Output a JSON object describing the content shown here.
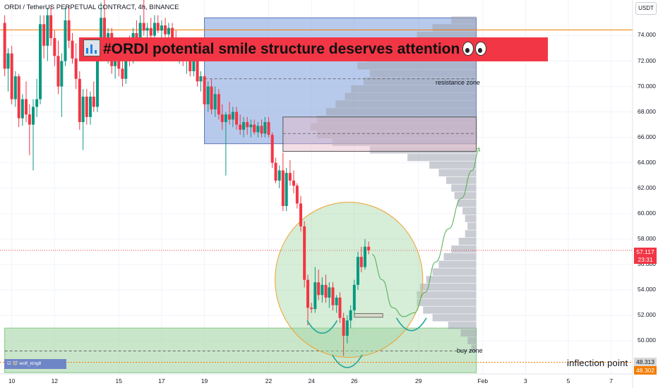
{
  "header": {
    "symbol": "ORDI / TetherUS PERPETUAL CONTRACT, 4h, BINANCE",
    "currency_button": "USDT"
  },
  "title_banner": {
    "text": "#ORDI potential smile structure deserves attention",
    "lead_icon": "bar-chart-icon",
    "trail_icon": "eyes-icon"
  },
  "annotations": {
    "resistance": "resistance zone",
    "buy": "buy zone",
    "inflection": "inflection point"
  },
  "price_tags": {
    "last_price": "57.117",
    "countdown": "23:31",
    "inflection_a": "48.313",
    "inflection_b": "48.302",
    "last_color": "#f23645",
    "inflection_a_color": "#d9d9d9",
    "inflection_b_color": "#f57c00"
  },
  "watermark": "wolf_king8",
  "colors": {
    "up": "#089981",
    "down": "#f23645",
    "resistance_box": "#7e9edc",
    "buy_box": "#a5d6a7",
    "profile": "#9ea3ae",
    "circle": "#f0a030",
    "projection": "#4caf50"
  },
  "chart_data": {
    "type": "candlestick",
    "ylim": [
      47.4,
      76.8
    ],
    "yticks": [
      74,
      72,
      70,
      68,
      66,
      64,
      62,
      60,
      58,
      56,
      54,
      52,
      50
    ],
    "ytick_labels": [
      "74.000",
      "72.000",
      "70.000",
      "68.000",
      "66.000",
      "64.000",
      "62.000",
      "60.000",
      "58.000",
      "56.000",
      "54.000",
      "52.000",
      "50.000"
    ],
    "xticks": [
      {
        "label": "10",
        "day": 10
      },
      {
        "label": "12",
        "day": 12
      },
      {
        "label": "15",
        "day": 15
      },
      {
        "label": "17",
        "day": 17
      },
      {
        "label": "19",
        "day": 19
      },
      {
        "label": "22",
        "day": 22
      },
      {
        "label": "24",
        "day": 24
      },
      {
        "label": "26",
        "day": 26
      },
      {
        "label": "29",
        "day": 29
      },
      {
        "label": "Feb",
        "day": 32
      },
      {
        "label": "3",
        "day": 34
      },
      {
        "label": "5",
        "day": 36
      },
      {
        "label": "7",
        "day": 38
      }
    ],
    "candles": [
      {
        "day": 9.67,
        "o": 75.0,
        "h": 75.6,
        "l": 70.8,
        "c": 71.4
      },
      {
        "day": 9.83,
        "o": 71.4,
        "h": 73.0,
        "l": 69.6,
        "c": 72.6
      },
      {
        "day": 10.0,
        "o": 72.6,
        "h": 73.2,
        "l": 68.6,
        "c": 69.0
      },
      {
        "day": 10.17,
        "o": 69.0,
        "h": 71.2,
        "l": 68.4,
        "c": 70.8
      },
      {
        "day": 10.33,
        "o": 70.8,
        "h": 71.0,
        "l": 66.8,
        "c": 67.5
      },
      {
        "day": 10.5,
        "o": 67.5,
        "h": 69.4,
        "l": 66.9,
        "c": 69.0
      },
      {
        "day": 10.67,
        "o": 69.0,
        "h": 70.4,
        "l": 67.2,
        "c": 67.8
      },
      {
        "day": 10.83,
        "o": 67.8,
        "h": 68.6,
        "l": 64.6,
        "c": 67.0
      },
      {
        "day": 11.0,
        "o": 67.0,
        "h": 69.0,
        "l": 63.4,
        "c": 68.4
      },
      {
        "day": 11.17,
        "o": 68.4,
        "h": 70.6,
        "l": 67.6,
        "c": 69.0
      },
      {
        "day": 11.33,
        "o": 69.0,
        "h": 75.6,
        "l": 68.6,
        "c": 74.9
      },
      {
        "day": 11.5,
        "o": 74.9,
        "h": 75.6,
        "l": 72.2,
        "c": 73.2
      },
      {
        "day": 11.67,
        "o": 73.2,
        "h": 76.2,
        "l": 72.0,
        "c": 75.6
      },
      {
        "day": 11.83,
        "o": 75.6,
        "h": 76.4,
        "l": 73.2,
        "c": 73.8
      },
      {
        "day": 12.0,
        "o": 73.8,
        "h": 74.4,
        "l": 71.6,
        "c": 72.4
      },
      {
        "day": 12.17,
        "o": 72.4,
        "h": 73.6,
        "l": 69.4,
        "c": 70.0
      },
      {
        "day": 12.33,
        "o": 70.0,
        "h": 72.6,
        "l": 67.6,
        "c": 72.0
      },
      {
        "day": 12.5,
        "o": 72.0,
        "h": 76.2,
        "l": 71.6,
        "c": 75.2
      },
      {
        "day": 12.67,
        "o": 75.2,
        "h": 76.4,
        "l": 73.0,
        "c": 73.6
      },
      {
        "day": 12.83,
        "o": 73.6,
        "h": 74.2,
        "l": 71.8,
        "c": 72.2
      },
      {
        "day": 13.0,
        "o": 72.2,
        "h": 73.4,
        "l": 69.8,
        "c": 70.6
      },
      {
        "day": 13.17,
        "o": 70.6,
        "h": 71.2,
        "l": 66.6,
        "c": 67.2
      },
      {
        "day": 13.33,
        "o": 67.2,
        "h": 69.8,
        "l": 65.0,
        "c": 69.2
      },
      {
        "day": 13.5,
        "o": 69.2,
        "h": 69.8,
        "l": 67.0,
        "c": 67.6
      },
      {
        "day": 13.67,
        "o": 67.6,
        "h": 69.6,
        "l": 67.0,
        "c": 69.2
      },
      {
        "day": 13.83,
        "o": 69.2,
        "h": 70.4,
        "l": 68.0,
        "c": 68.4
      },
      {
        "day": 14.0,
        "o": 68.4,
        "h": 73.8,
        "l": 68.0,
        "c": 72.6
      },
      {
        "day": 14.17,
        "o": 72.6,
        "h": 76.6,
        "l": 72.0,
        "c": 75.4
      },
      {
        "day": 14.33,
        "o": 75.4,
        "h": 76.8,
        "l": 72.6,
        "c": 73.2
      },
      {
        "day": 14.5,
        "o": 73.2,
        "h": 74.6,
        "l": 71.8,
        "c": 74.2
      },
      {
        "day": 14.67,
        "o": 74.2,
        "h": 74.6,
        "l": 71.0,
        "c": 71.6
      },
      {
        "day": 14.83,
        "o": 71.6,
        "h": 73.4,
        "l": 70.6,
        "c": 73.0
      },
      {
        "day": 15.0,
        "o": 73.0,
        "h": 73.6,
        "l": 70.8,
        "c": 71.4
      },
      {
        "day": 15.17,
        "o": 71.4,
        "h": 72.2,
        "l": 70.0,
        "c": 70.6
      },
      {
        "day": 15.33,
        "o": 70.6,
        "h": 73.6,
        "l": 70.2,
        "c": 73.2
      },
      {
        "day": 15.5,
        "o": 73.2,
        "h": 74.0,
        "l": 71.6,
        "c": 72.2
      },
      {
        "day": 15.67,
        "o": 72.2,
        "h": 74.6,
        "l": 71.8,
        "c": 74.2
      },
      {
        "day": 15.83,
        "o": 74.2,
        "h": 75.2,
        "l": 73.2,
        "c": 73.6
      },
      {
        "day": 16.0,
        "o": 73.6,
        "h": 75.6,
        "l": 73.0,
        "c": 75.0
      },
      {
        "day": 16.17,
        "o": 75.0,
        "h": 76.8,
        "l": 74.0,
        "c": 74.4
      },
      {
        "day": 16.33,
        "o": 74.4,
        "h": 75.0,
        "l": 73.2,
        "c": 74.6
      },
      {
        "day": 16.5,
        "o": 74.6,
        "h": 75.4,
        "l": 73.6,
        "c": 74.0
      },
      {
        "day": 16.67,
        "o": 74.0,
        "h": 75.6,
        "l": 73.4,
        "c": 75.0
      },
      {
        "day": 16.83,
        "o": 75.0,
        "h": 75.6,
        "l": 74.2,
        "c": 74.4
      },
      {
        "day": 17.0,
        "o": 74.4,
        "h": 75.2,
        "l": 73.6,
        "c": 74.8
      },
      {
        "day": 17.17,
        "o": 74.8,
        "h": 75.4,
        "l": 73.8,
        "c": 74.1
      },
      {
        "day": 17.33,
        "o": 74.1,
        "h": 75.0,
        "l": 73.6,
        "c": 74.6
      },
      {
        "day": 17.5,
        "o": 74.6,
        "h": 75.0,
        "l": 73.4,
        "c": 73.8
      },
      {
        "day": 17.67,
        "o": 73.8,
        "h": 74.4,
        "l": 72.0,
        "c": 72.4
      },
      {
        "day": 17.83,
        "o": 72.4,
        "h": 73.6,
        "l": 71.8,
        "c": 73.2
      },
      {
        "day": 18.0,
        "o": 73.2,
        "h": 73.6,
        "l": 71.6,
        "c": 72.0
      },
      {
        "day": 18.17,
        "o": 72.0,
        "h": 72.8,
        "l": 71.0,
        "c": 72.4
      },
      {
        "day": 18.33,
        "o": 72.4,
        "h": 72.8,
        "l": 70.8,
        "c": 71.2
      },
      {
        "day": 18.5,
        "o": 71.2,
        "h": 72.4,
        "l": 70.8,
        "c": 72.0
      },
      {
        "day": 18.67,
        "o": 72.0,
        "h": 72.6,
        "l": 70.0,
        "c": 70.4
      },
      {
        "day": 18.83,
        "o": 70.4,
        "h": 71.2,
        "l": 69.6,
        "c": 70.8
      },
      {
        "day": 19.0,
        "o": 70.8,
        "h": 71.0,
        "l": 68.2,
        "c": 68.6
      },
      {
        "day": 19.17,
        "o": 68.6,
        "h": 70.4,
        "l": 68.0,
        "c": 70.0
      },
      {
        "day": 19.33,
        "o": 70.0,
        "h": 70.6,
        "l": 67.8,
        "c": 68.2
      },
      {
        "day": 19.5,
        "o": 68.2,
        "h": 70.0,
        "l": 67.6,
        "c": 69.4
      },
      {
        "day": 19.67,
        "o": 69.4,
        "h": 69.8,
        "l": 67.4,
        "c": 67.8
      },
      {
        "day": 19.83,
        "o": 67.8,
        "h": 68.6,
        "l": 66.6,
        "c": 67.2
      },
      {
        "day": 20.0,
        "o": 67.2,
        "h": 68.0,
        "l": 63.0,
        "c": 67.8
      },
      {
        "day": 20.17,
        "o": 67.8,
        "h": 68.8,
        "l": 67.0,
        "c": 67.4
      },
      {
        "day": 20.33,
        "o": 67.4,
        "h": 68.4,
        "l": 66.8,
        "c": 68.0
      },
      {
        "day": 20.5,
        "o": 68.0,
        "h": 68.4,
        "l": 66.6,
        "c": 67.0
      },
      {
        "day": 20.67,
        "o": 67.0,
        "h": 67.8,
        "l": 66.2,
        "c": 66.6
      },
      {
        "day": 20.83,
        "o": 66.6,
        "h": 67.6,
        "l": 66.0,
        "c": 67.2
      },
      {
        "day": 21.0,
        "o": 67.2,
        "h": 67.6,
        "l": 66.2,
        "c": 66.8
      },
      {
        "day": 21.17,
        "o": 66.8,
        "h": 67.4,
        "l": 66.0,
        "c": 67.0
      },
      {
        "day": 21.33,
        "o": 67.0,
        "h": 67.4,
        "l": 66.2,
        "c": 66.4
      },
      {
        "day": 21.5,
        "o": 66.4,
        "h": 67.2,
        "l": 66.0,
        "c": 66.9
      },
      {
        "day": 21.67,
        "o": 66.9,
        "h": 67.4,
        "l": 66.0,
        "c": 66.3
      },
      {
        "day": 21.83,
        "o": 66.3,
        "h": 67.6,
        "l": 66.0,
        "c": 67.2
      },
      {
        "day": 22.0,
        "o": 67.2,
        "h": 67.6,
        "l": 66.0,
        "c": 66.2
      },
      {
        "day": 22.17,
        "o": 66.2,
        "h": 66.4,
        "l": 63.6,
        "c": 64.0
      },
      {
        "day": 22.33,
        "o": 64.0,
        "h": 64.4,
        "l": 62.4,
        "c": 62.6
      },
      {
        "day": 22.5,
        "o": 62.6,
        "h": 63.8,
        "l": 62.0,
        "c": 63.4
      },
      {
        "day": 22.67,
        "o": 63.4,
        "h": 64.8,
        "l": 60.2,
        "c": 60.6
      },
      {
        "day": 22.83,
        "o": 60.6,
        "h": 63.6,
        "l": 60.2,
        "c": 63.2
      },
      {
        "day": 23.0,
        "o": 63.2,
        "h": 64.2,
        "l": 62.2,
        "c": 62.6
      },
      {
        "day": 23.17,
        "o": 62.6,
        "h": 63.4,
        "l": 61.6,
        "c": 62.2
      },
      {
        "day": 23.33,
        "o": 62.2,
        "h": 62.4,
        "l": 60.4,
        "c": 60.8
      },
      {
        "day": 23.5,
        "o": 60.8,
        "h": 61.4,
        "l": 58.6,
        "c": 59.0
      },
      {
        "day": 23.67,
        "o": 59.0,
        "h": 59.4,
        "l": 54.2,
        "c": 54.8
      },
      {
        "day": 23.83,
        "o": 54.8,
        "h": 55.2,
        "l": 51.2,
        "c": 52.6
      },
      {
        "day": 24.0,
        "o": 52.6,
        "h": 53.0,
        "l": 52.2,
        "c": 52.5
      },
      {
        "day": 24.17,
        "o": 52.5,
        "h": 55.8,
        "l": 52.2,
        "c": 54.6
      },
      {
        "day": 24.33,
        "o": 54.6,
        "h": 55.6,
        "l": 53.2,
        "c": 53.6
      },
      {
        "day": 24.5,
        "o": 53.6,
        "h": 55.0,
        "l": 53.0,
        "c": 54.4
      },
      {
        "day": 24.67,
        "o": 54.4,
        "h": 55.2,
        "l": 53.0,
        "c": 53.4
      },
      {
        "day": 24.83,
        "o": 53.4,
        "h": 54.6,
        "l": 52.6,
        "c": 54.2
      },
      {
        "day": 25.0,
        "o": 54.2,
        "h": 54.6,
        "l": 52.4,
        "c": 52.8
      },
      {
        "day": 25.17,
        "o": 52.8,
        "h": 53.6,
        "l": 52.2,
        "c": 53.4
      },
      {
        "day": 25.33,
        "o": 53.4,
        "h": 53.8,
        "l": 51.4,
        "c": 51.8
      },
      {
        "day": 25.5,
        "o": 51.8,
        "h": 52.2,
        "l": 48.8,
        "c": 50.4
      },
      {
        "day": 25.67,
        "o": 50.4,
        "h": 52.0,
        "l": 49.8,
        "c": 51.6
      },
      {
        "day": 25.83,
        "o": 51.6,
        "h": 52.8,
        "l": 51.0,
        "c": 52.4
      },
      {
        "day": 26.0,
        "o": 52.4,
        "h": 54.8,
        "l": 52.0,
        "c": 54.4
      },
      {
        "day": 26.17,
        "o": 54.4,
        "h": 57.0,
        "l": 54.0,
        "c": 56.6
      },
      {
        "day": 26.33,
        "o": 56.6,
        "h": 57.4,
        "l": 55.4,
        "c": 55.8
      },
      {
        "day": 26.5,
        "o": 55.8,
        "h": 58.0,
        "l": 55.6,
        "c": 57.4
      },
      {
        "day": 26.67,
        "o": 57.4,
        "h": 57.8,
        "l": 56.8,
        "c": 57.117
      }
    ],
    "resistance_zone": {
      "from_day": 19.0,
      "to_day": 31.7,
      "y_low": 65.5,
      "y_high": 75.4
    },
    "resistance_box_2": {
      "from_day": 22.67,
      "to_day": 31.7,
      "y_low": 64.9,
      "y_high": 67.6
    },
    "resistance_dashed": [
      70.6,
      66.3
    ],
    "buy_zone": {
      "from_day": 9.67,
      "to_day": 31.7,
      "y_low": 47.5,
      "y_high": 51.0
    },
    "buy_dashed": 49.2,
    "inflection_level": 48.313,
    "last_price_line": 57.117,
    "smile_circle": {
      "center_day": 25.75,
      "center_y": 54.8,
      "radius_days": 3.45,
      "radius_y": 6.1
    },
    "projection_path": [
      [
        26.83,
        56.8
      ],
      [
        27.3,
        54.8
      ],
      [
        27.8,
        52.6
      ],
      [
        28.3,
        51.9
      ],
      [
        28.8,
        52.2
      ],
      [
        29.3,
        53.8
      ],
      [
        29.8,
        56.2
      ],
      [
        30.4,
        58.8
      ],
      [
        31.0,
        61.2
      ],
      [
        31.5,
        63.4
      ],
      [
        31.83,
        65.0
      ]
    ],
    "small_box": {
      "from_day": 26.0,
      "to_day": 27.33,
      "y_low": 51.85,
      "y_high": 52.15
    },
    "smile_arcs": [
      {
        "center_day": 24.5,
        "center_y": 51.6,
        "radius_days": 0.7,
        "depth": 1.0
      },
      {
        "center_day": 25.67,
        "center_y": 48.9,
        "radius_days": 0.7,
        "depth": 1.0
      },
      {
        "center_day": 28.67,
        "center_y": 51.8,
        "radius_days": 0.7,
        "depth": 1.0
      }
    ],
    "volume_profile": [
      {
        "y": 75.2,
        "v": 40
      },
      {
        "y": 74.6,
        "v": 70
      },
      {
        "y": 74.0,
        "v": 95
      },
      {
        "y": 73.4,
        "v": 115
      },
      {
        "y": 72.8,
        "v": 150
      },
      {
        "y": 72.2,
        "v": 175
      },
      {
        "y": 71.6,
        "v": 190
      },
      {
        "y": 71.0,
        "v": 170
      },
      {
        "y": 70.4,
        "v": 180
      },
      {
        "y": 69.8,
        "v": 200
      },
      {
        "y": 69.2,
        "v": 210
      },
      {
        "y": 68.6,
        "v": 225
      },
      {
        "y": 68.0,
        "v": 240
      },
      {
        "y": 67.4,
        "v": 255
      },
      {
        "y": 66.8,
        "v": 265
      },
      {
        "y": 66.2,
        "v": 255
      },
      {
        "y": 65.6,
        "v": 230
      },
      {
        "y": 65.0,
        "v": 170
      },
      {
        "y": 64.4,
        "v": 110
      },
      {
        "y": 63.8,
        "v": 75
      },
      {
        "y": 63.2,
        "v": 60
      },
      {
        "y": 62.6,
        "v": 48
      },
      {
        "y": 62.0,
        "v": 40
      },
      {
        "y": 61.4,
        "v": 35
      },
      {
        "y": 60.8,
        "v": 30
      },
      {
        "y": 60.2,
        "v": 22
      },
      {
        "y": 59.6,
        "v": 18
      },
      {
        "y": 59.0,
        "v": 14
      },
      {
        "y": 58.4,
        "v": 18
      },
      {
        "y": 57.8,
        "v": 28
      },
      {
        "y": 57.2,
        "v": 40
      },
      {
        "y": 56.6,
        "v": 52
      },
      {
        "y": 56.0,
        "v": 60
      },
      {
        "y": 55.4,
        "v": 70
      },
      {
        "y": 54.8,
        "v": 80
      },
      {
        "y": 54.2,
        "v": 90
      },
      {
        "y": 53.6,
        "v": 95
      },
      {
        "y": 53.0,
        "v": 95
      },
      {
        "y": 52.4,
        "v": 85
      },
      {
        "y": 51.8,
        "v": 70
      },
      {
        "y": 51.2,
        "v": 45
      },
      {
        "y": 50.6,
        "v": 25
      },
      {
        "y": 50.0,
        "v": 14
      },
      {
        "y": 49.4,
        "v": 8
      }
    ]
  }
}
